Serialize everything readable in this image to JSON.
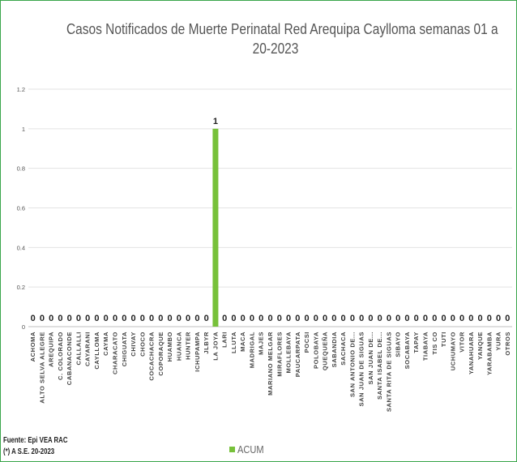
{
  "chart_data": {
    "type": "bar",
    "title_lines": [
      "Casos Notificados de Muerte Perinatal Red Arequipa Caylloma semanas 01 a",
      "20-2023"
    ],
    "categories": [
      "ACHOMA",
      "ALTO SELVA ALEGRE",
      "AREQUIPA",
      "C. COLORADO",
      "CABANACONDE",
      "CALLALLI",
      "CAYARANI",
      "CAYLLOMA",
      "CAYMA",
      "CHARACATO",
      "CHIGUATA",
      "CHIVAY",
      "CHOCO",
      "COCACHACRA",
      "COPORAQUE",
      "HUAMBO",
      "HUANCA",
      "HUNTER",
      "ICHUPAMPA",
      "JLBYR",
      "LA JOYA",
      "LARI",
      "LLUTA",
      "MACA",
      "MADRIGAL",
      "MAJES",
      "MARIANO MELGAR",
      "MIRAFLORES",
      "MOLLEBAYA",
      "PAUCARPATA",
      "POCSI",
      "POLOBAYA",
      "QUEQUEÑA",
      "SABANDIA",
      "SACHACA",
      "SAN ANTONIO DE...",
      "SAN JUAN DE SIGUAS",
      "SAN JUAN DE...",
      "SANTA ISABEL DE...",
      "SANTA RITA DE SIGUAS",
      "SIBAYO",
      "SOCABAYA",
      "TAPAY",
      "TIABAYA",
      "TIS CO",
      "TUTI",
      "UCHUMAYO",
      "VITOR",
      "YANAHUARA",
      "YANQUE",
      "YARABAMBA",
      "YURA",
      "OTROS"
    ],
    "series": [
      {
        "name": "ACUM",
        "color": "#77c13a",
        "values": [
          0,
          0,
          0,
          0,
          0,
          0,
          0,
          0,
          0,
          0,
          0,
          0,
          0,
          0,
          0,
          0,
          0,
          0,
          0,
          0,
          1,
          0,
          0,
          0,
          0,
          0,
          0,
          0,
          0,
          0,
          0,
          0,
          0,
          0,
          0,
          0,
          0,
          0,
          0,
          0,
          0,
          0,
          0,
          0,
          0,
          0,
          0,
          0,
          0,
          0,
          0,
          0,
          0
        ]
      }
    ],
    "yticks": [
      "0",
      "0.2",
      "0.4",
      "0.6",
      "0.8",
      "1",
      "1.2"
    ],
    "ylim": [
      0,
      1.2
    ],
    "grid": true,
    "legend": "bottom"
  },
  "footnotes": {
    "source": "Fuente: Epi VEA RAC",
    "period": "(*) A S.E. 20-2023"
  }
}
